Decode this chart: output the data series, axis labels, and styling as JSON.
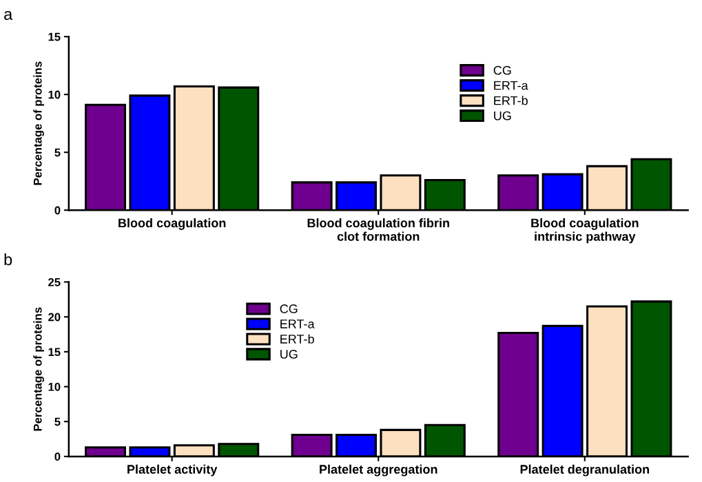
{
  "chart_data": [
    {
      "type": "bar",
      "title": "a",
      "ylabel": "Percentage of proteins",
      "categories": [
        "Blood coagulation",
        "Blood coagulation fibrin\nclot formation",
        "Blood coagulation\nintrinsic pathway"
      ],
      "series": [
        {
          "name": "CG",
          "color": "#6f008f",
          "values": [
            9.1,
            2.4,
            3.0
          ]
        },
        {
          "name": "ERT-a",
          "color": "#0000ff",
          "values": [
            9.9,
            2.4,
            3.1
          ]
        },
        {
          "name": "ERT-b",
          "color": "#fde0c0",
          "values": [
            10.7,
            3.0,
            3.8
          ]
        },
        {
          "name": "UG",
          "color": "#005500",
          "values": [
            10.6,
            2.6,
            4.4
          ]
        }
      ],
      "ylim": [
        0,
        15
      ],
      "yticks": [
        0,
        5,
        10,
        15
      ],
      "grid": false,
      "legend": "top right"
    },
    {
      "type": "bar",
      "title": "b",
      "ylabel": "Percentage of proteins",
      "categories": [
        "Platelet activity",
        "Platelet aggregation",
        "Platelet degranulation"
      ],
      "series": [
        {
          "name": "CG",
          "color": "#6f008f",
          "values": [
            1.3,
            3.1,
            17.7
          ]
        },
        {
          "name": "ERT-a",
          "color": "#0000ff",
          "values": [
            1.3,
            3.1,
            18.7
          ]
        },
        {
          "name": "ERT-b",
          "color": "#fde0c0",
          "values": [
            1.6,
            3.8,
            21.5
          ]
        },
        {
          "name": "UG",
          "color": "#005500",
          "values": [
            1.8,
            4.5,
            22.2
          ]
        }
      ],
      "ylim": [
        0,
        25
      ],
      "yticks": [
        0,
        5,
        10,
        15,
        20,
        25
      ],
      "grid": false,
      "legend": "top left"
    }
  ]
}
